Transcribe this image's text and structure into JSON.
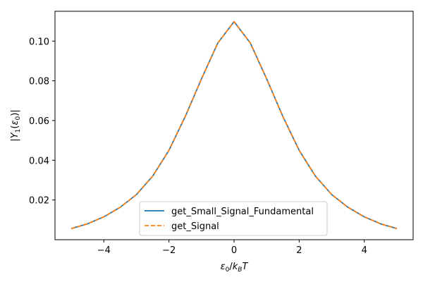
{
  "chart_data": {
    "type": "line",
    "title": "",
    "xlabel": "ε₀/k_BT",
    "ylabel": "|Y₁(ε₀)|",
    "xlim": [
      -5.5,
      5.5
    ],
    "ylim": [
      0.0,
      0.115
    ],
    "xticks": [
      -4,
      -2,
      0,
      2,
      4
    ],
    "xtick_labels": [
      "−4",
      "−2",
      "0",
      "2",
      "4"
    ],
    "yticks": [
      0.02,
      0.04,
      0.06,
      0.08,
      0.1
    ],
    "ytick_labels": [
      "0.02",
      "0.04",
      "0.06",
      "0.08",
      "0.10"
    ],
    "grid": false,
    "legend_position": "lower-center",
    "x": [
      -5.0,
      -4.5,
      -4.0,
      -3.5,
      -3.0,
      -2.5,
      -2.0,
      -1.5,
      -1.0,
      -0.5,
      0.0,
      0.5,
      1.0,
      1.5,
      2.0,
      2.5,
      3.0,
      3.5,
      4.0,
      4.5,
      5.0
    ],
    "series": [
      {
        "name": "get_Small_Signal_Fundamental",
        "color": "#1f77b4",
        "style": "solid",
        "values": [
          0.0056,
          0.008,
          0.0115,
          0.0163,
          0.0227,
          0.032,
          0.045,
          0.062,
          0.081,
          0.099,
          0.1098,
          0.099,
          0.081,
          0.062,
          0.045,
          0.032,
          0.0227,
          0.0163,
          0.0115,
          0.008,
          0.0056
        ]
      },
      {
        "name": "get_Signal",
        "color": "#ff7f0e",
        "style": "dashed",
        "values": [
          0.0056,
          0.008,
          0.0115,
          0.0163,
          0.0227,
          0.032,
          0.045,
          0.062,
          0.081,
          0.099,
          0.1098,
          0.099,
          0.081,
          0.062,
          0.045,
          0.032,
          0.0227,
          0.0163,
          0.0115,
          0.008,
          0.0056
        ]
      }
    ]
  }
}
